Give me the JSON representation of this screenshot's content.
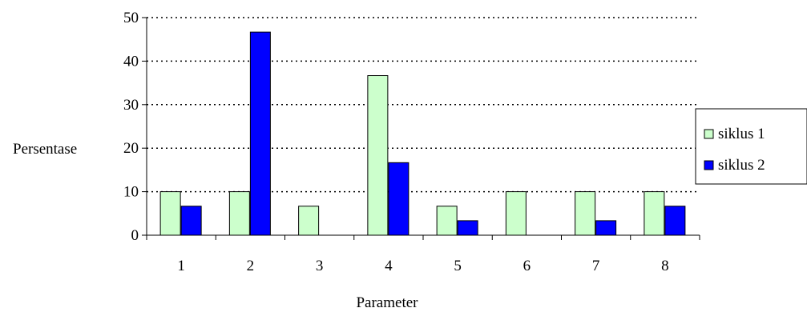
{
  "chart_data": {
    "type": "bar",
    "title": "",
    "xlabel": "Parameter",
    "ylabel": "Persentase",
    "categories": [
      "1",
      "2",
      "3",
      "4",
      "5",
      "6",
      "7",
      "8"
    ],
    "series": [
      {
        "name": "siklus 1",
        "color": "#ccffcc",
        "values": [
          10,
          10,
          6.67,
          36.67,
          6.67,
          10,
          10,
          10
        ]
      },
      {
        "name": "siklus 2",
        "color": "#0000ff",
        "values": [
          6.67,
          46.67,
          0,
          16.67,
          3.33,
          0,
          3.33,
          6.67
        ]
      }
    ],
    "ylim": [
      0,
      50
    ],
    "yticks": [
      "0",
      "10",
      "20",
      "30",
      "40",
      "50"
    ],
    "grid": "horizontal dotted",
    "legend_position": "right"
  }
}
